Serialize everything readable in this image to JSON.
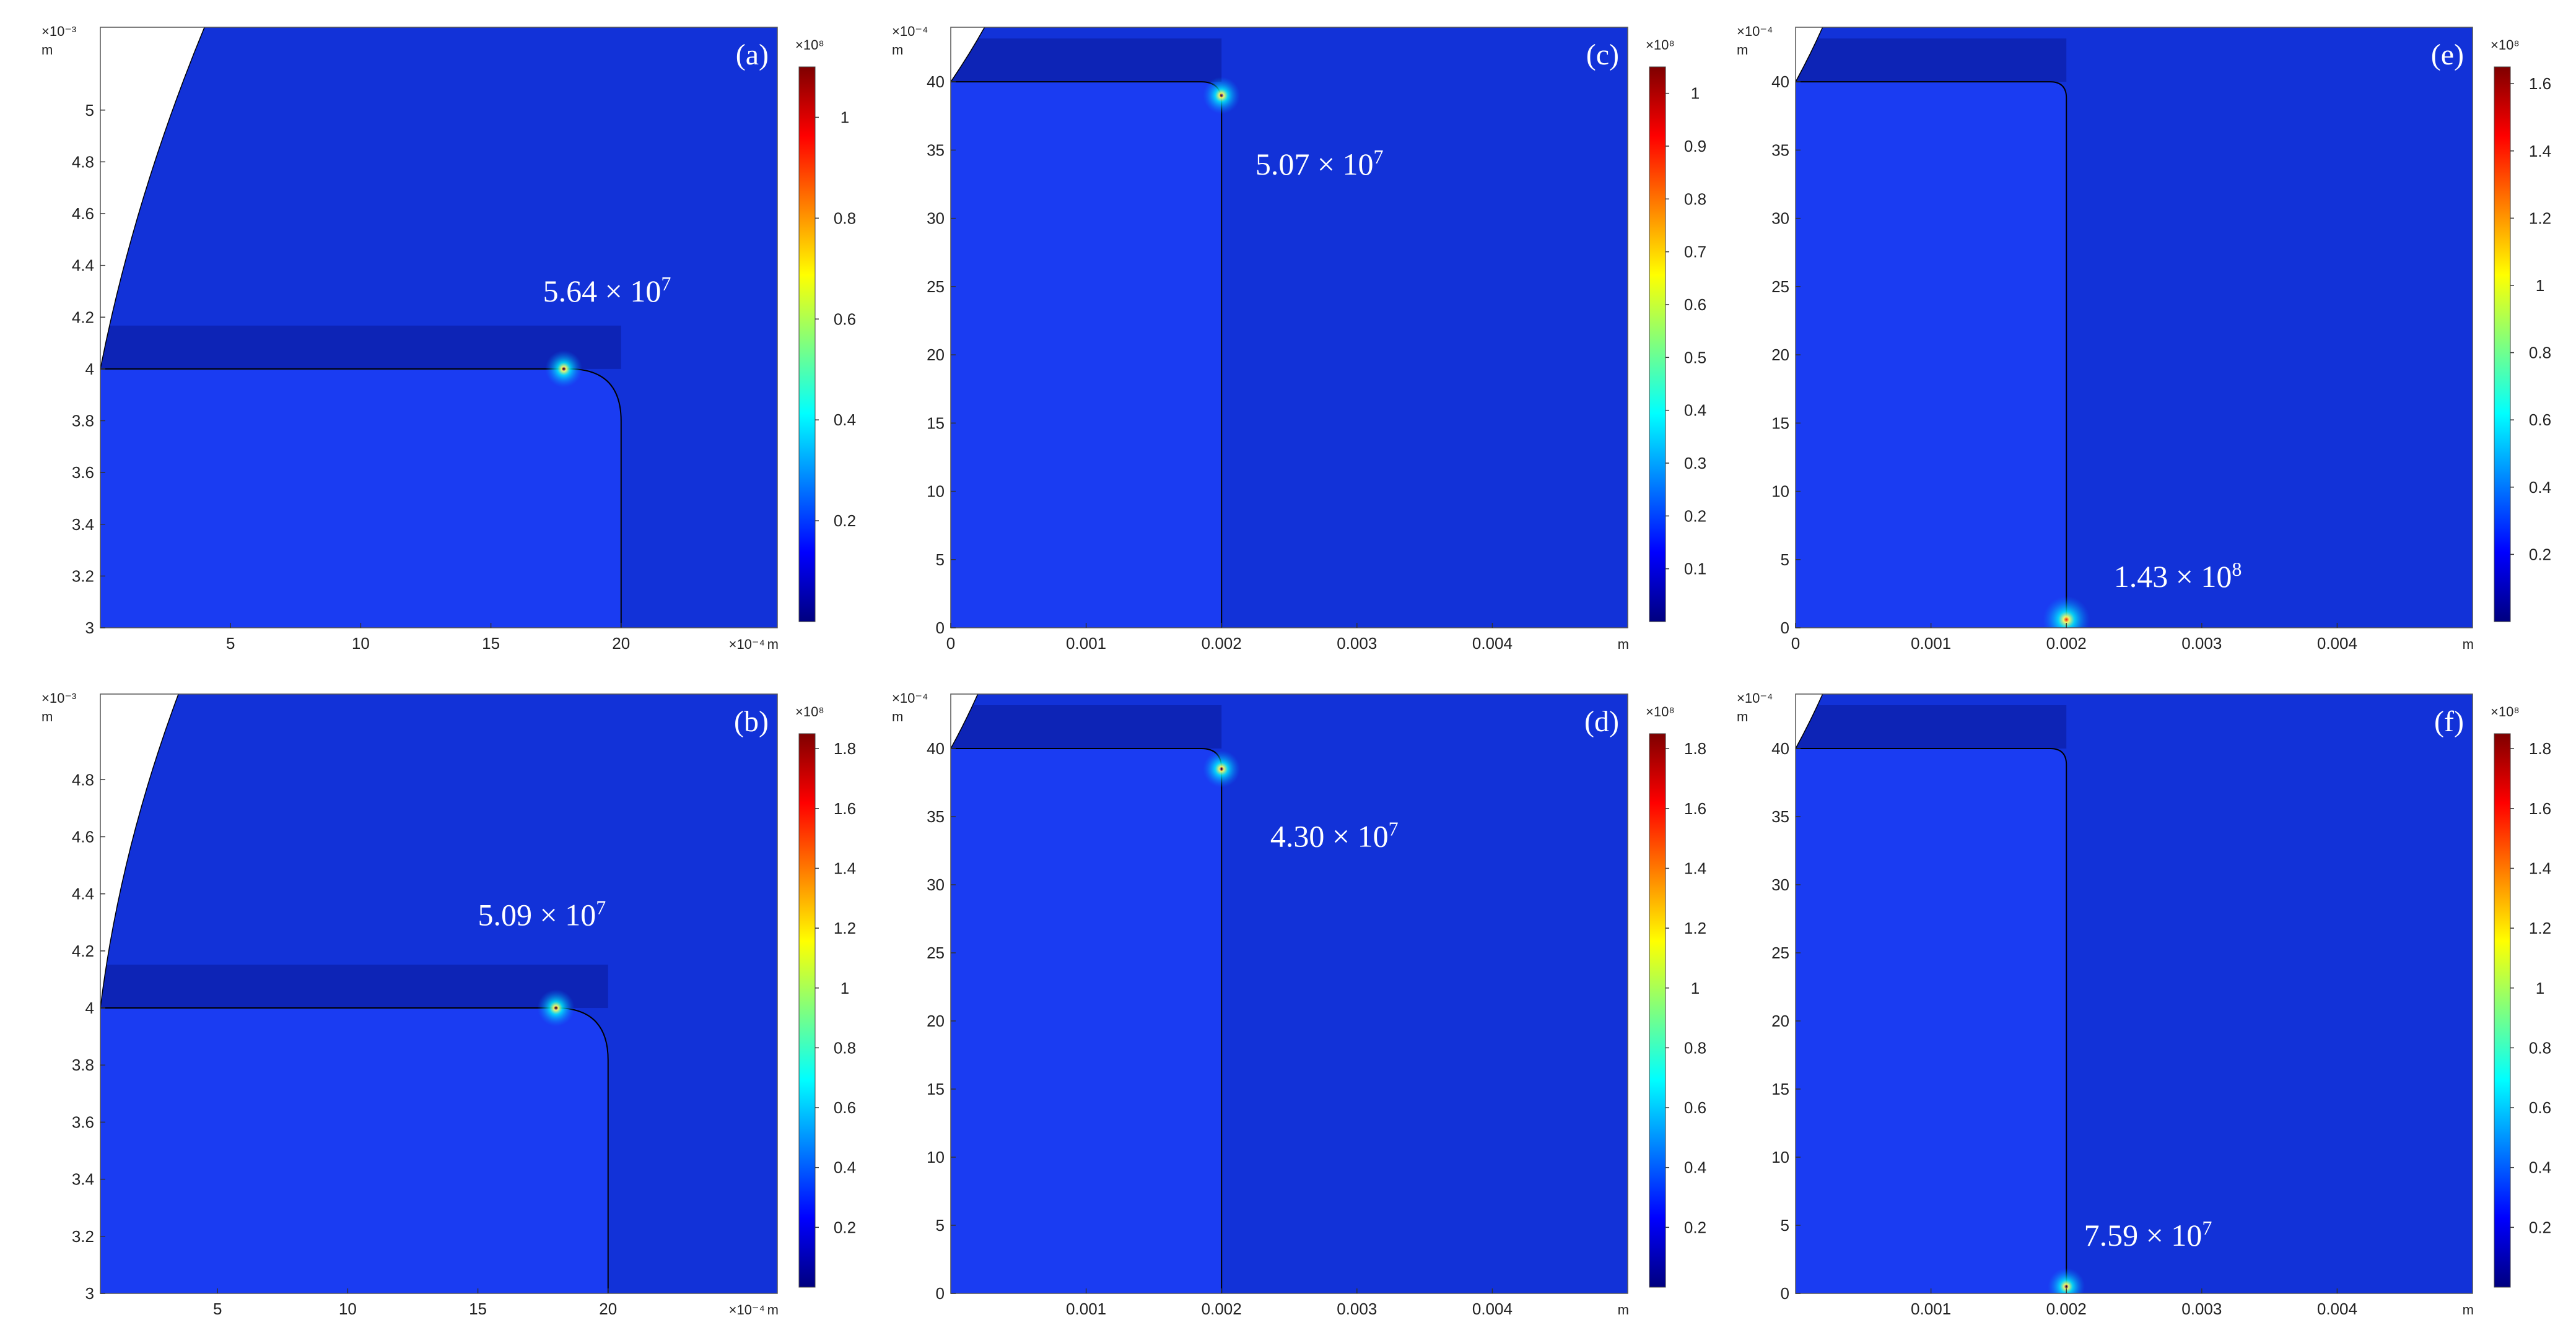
{
  "colors": {
    "field_base": "#1232d8",
    "field_dark": "#0a1a9a",
    "solid": "#1a3cf2",
    "void": "#ffffff",
    "colormap": [
      "#00007f",
      "#0000ff",
      "#007fff",
      "#00ffff",
      "#7fff7f",
      "#ffff00",
      "#ff7f00",
      "#ff0000",
      "#7f0000"
    ]
  },
  "chart_data": [
    {
      "id": "a",
      "type": "heatmap",
      "label": "(a)",
      "x_ticks": [
        "5",
        "10",
        "15",
        "20"
      ],
      "x_values": [
        5,
        10,
        15,
        20
      ],
      "xlim": [
        0,
        26
      ],
      "x_exponent": "×10⁻⁴",
      "x_unit": "m",
      "y_ticks": [
        "3",
        "3.2",
        "3.4",
        "3.6",
        "3.8",
        "4",
        "4.2",
        "4.4",
        "4.6",
        "4.8",
        "5"
      ],
      "y_values": [
        3,
        3.2,
        3.4,
        3.6,
        3.8,
        4,
        4.2,
        4.4,
        4.6,
        4.8,
        5
      ],
      "ylim": [
        3,
        5.32
      ],
      "y_exponent": "×10⁻³",
      "y_unit": "m",
      "geometry": {
        "top_y": 4.0,
        "right_x": 20,
        "corner_r": 2.0,
        "void_top_x": 4.0,
        "void_dx": 6.0
      },
      "peak": {
        "value": 56400000,
        "text": "5.64 × 10",
        "exp": "7",
        "x": 17.8,
        "y": 4.0,
        "label_x": 17,
        "label_y": 4.26
      },
      "colorbar": {
        "exponent": "×10⁸",
        "ticks": [
          "0.2",
          "0.4",
          "0.6",
          "0.8",
          "1"
        ],
        "tick_values": [
          0.2,
          0.4,
          0.6,
          0.8,
          1.0
        ],
        "range": [
          0,
          1.1
        ]
      }
    },
    {
      "id": "b",
      "type": "heatmap",
      "label": "(b)",
      "x_ticks": [
        "5",
        "10",
        "15",
        "20"
      ],
      "x_values": [
        5,
        10,
        15,
        20
      ],
      "xlim": [
        0.5,
        26.5
      ],
      "x_exponent": "×10⁻⁴",
      "x_unit": "m",
      "y_ticks": [
        "3",
        "3.2",
        "3.4",
        "3.6",
        "3.8",
        "4",
        "4.2",
        "4.4",
        "4.6",
        "4.8"
      ],
      "y_values": [
        3,
        3.2,
        3.4,
        3.6,
        3.8,
        4,
        4.2,
        4.4,
        4.6,
        4.8
      ],
      "ylim": [
        3,
        5.1
      ],
      "y_exponent": "×10⁻³",
      "y_unit": "m",
      "geometry": {
        "top_y": 4.0,
        "right_x": 20,
        "corner_r": 2.0,
        "void_top_x": 3.5,
        "void_dx": 5.0
      },
      "peak": {
        "value": 50900000,
        "text": "5.09 × 10",
        "exp": "7",
        "x": 18.0,
        "y": 4.0,
        "label_x": 15.0,
        "label_y": 4.29
      },
      "colorbar": {
        "exponent": "×10⁸",
        "ticks": [
          "0.2",
          "0.4",
          "0.6",
          "0.8",
          "1",
          "1.2",
          "1.4",
          "1.6",
          "1.8"
        ],
        "tick_values": [
          0.2,
          0.4,
          0.6,
          0.8,
          1.0,
          1.2,
          1.4,
          1.6,
          1.8
        ],
        "range": [
          0,
          1.85
        ]
      }
    },
    {
      "id": "c",
      "type": "heatmap",
      "label": "(c)",
      "x_ticks": [
        "0",
        "0.001",
        "0.002",
        "0.003",
        "0.004"
      ],
      "x_values": [
        0,
        0.001,
        0.002,
        0.003,
        0.004
      ],
      "xlim": [
        0,
        0.005
      ],
      "x_exponent": "",
      "x_unit": "m",
      "y_ticks": [
        "0",
        "5",
        "10",
        "15",
        "20",
        "25",
        "30",
        "35",
        "40"
      ],
      "y_values": [
        0,
        5,
        10,
        15,
        20,
        25,
        30,
        35,
        40
      ],
      "ylim": [
        0,
        44
      ],
      "y_exponent": "×10⁻⁴",
      "y_unit": "m",
      "geometry": {
        "top_y": 40,
        "right_x": 0.002,
        "corner_r": 0.00015,
        "void_top_x": 0.00025,
        "void_dx": 0.00025
      },
      "peak": {
        "value": 50700000,
        "text": "5.07 × 10",
        "exp": "7",
        "x": 0.002,
        "y": 39,
        "label_x": 0.00225,
        "label_y": 33.2
      },
      "colorbar": {
        "exponent": "×10⁸",
        "ticks": [
          "0.1",
          "0.2",
          "0.3",
          "0.4",
          "0.5",
          "0.6",
          "0.7",
          "0.8",
          "0.9",
          "1"
        ],
        "tick_values": [
          0.1,
          0.2,
          0.3,
          0.4,
          0.5,
          0.6,
          0.7,
          0.8,
          0.9,
          1.0
        ],
        "range": [
          0,
          1.05
        ]
      }
    },
    {
      "id": "d",
      "type": "heatmap",
      "label": "(d)",
      "x_ticks": [
        "0.001",
        "0.002",
        "0.003",
        "0.004"
      ],
      "x_values": [
        0.001,
        0.002,
        0.003,
        0.004
      ],
      "xlim": [
        0,
        0.005
      ],
      "x_exponent": "",
      "x_unit": "m",
      "y_ticks": [
        "0",
        "5",
        "10",
        "15",
        "20",
        "25",
        "30",
        "35",
        "40"
      ],
      "y_values": [
        0,
        5,
        10,
        15,
        20,
        25,
        30,
        35,
        40
      ],
      "ylim": [
        0,
        44
      ],
      "y_exponent": "×10⁻⁴",
      "y_unit": "m",
      "geometry": {
        "top_y": 40,
        "right_x": 0.002,
        "corner_r": 0.00015,
        "void_top_x": 0.0002,
        "void_dx": 0.0002
      },
      "peak": {
        "value": 43000000,
        "text": "4.30 × 10",
        "exp": "7",
        "x": 0.002,
        "y": 38.5,
        "label_x": 0.00236,
        "label_y": 32.8
      },
      "colorbar": {
        "exponent": "×10⁸",
        "ticks": [
          "0.2",
          "0.4",
          "0.6",
          "0.8",
          "1",
          "1.2",
          "1.4",
          "1.6",
          "1.8"
        ],
        "tick_values": [
          0.2,
          0.4,
          0.6,
          0.8,
          1.0,
          1.2,
          1.4,
          1.6,
          1.8
        ],
        "range": [
          0,
          1.85
        ]
      }
    },
    {
      "id": "e",
      "type": "heatmap",
      "label": "(e)",
      "x_ticks": [
        "0",
        "0.001",
        "0.002",
        "0.003",
        "0.004"
      ],
      "x_values": [
        0,
        0.001,
        0.002,
        0.003,
        0.004
      ],
      "xlim": [
        0,
        0.005
      ],
      "x_exponent": "",
      "x_unit": "m",
      "y_ticks": [
        "0",
        "5",
        "10",
        "15",
        "20",
        "25",
        "30",
        "35",
        "40"
      ],
      "y_values": [
        0,
        5,
        10,
        15,
        20,
        25,
        30,
        35,
        40
      ],
      "ylim": [
        0,
        44
      ],
      "y_exponent": "×10⁻⁴",
      "y_unit": "m",
      "geometry": {
        "top_y": 40,
        "right_x": 0.002,
        "corner_r": 0.00012,
        "void_top_x": 0.0002,
        "void_dx": 0.0002
      },
      "peak": {
        "value": 143000000,
        "text": "1.43 × 10",
        "exp": "8",
        "x": 0.002,
        "y": 0.6,
        "label_x": 0.00235,
        "label_y": 3.0
      },
      "colorbar": {
        "exponent": "×10⁸",
        "ticks": [
          "0.2",
          "0.4",
          "0.6",
          "0.8",
          "1",
          "1.2",
          "1.4",
          "1.6"
        ],
        "tick_values": [
          0.2,
          0.4,
          0.6,
          0.8,
          1.0,
          1.2,
          1.4,
          1.6
        ],
        "range": [
          0,
          1.65
        ]
      }
    },
    {
      "id": "f",
      "type": "heatmap",
      "label": "(f)",
      "x_ticks": [
        "0.001",
        "0.002",
        "0.003",
        "0.004"
      ],
      "x_values": [
        0.001,
        0.002,
        0.003,
        0.004
      ],
      "xlim": [
        0,
        0.005
      ],
      "x_exponent": "",
      "x_unit": "m",
      "y_ticks": [
        "0",
        "5",
        "10",
        "15",
        "20",
        "25",
        "30",
        "35",
        "40"
      ],
      "y_values": [
        0,
        5,
        10,
        15,
        20,
        25,
        30,
        35,
        40
      ],
      "ylim": [
        0,
        44
      ],
      "y_exponent": "×10⁻⁴",
      "y_unit": "m",
      "geometry": {
        "top_y": 40,
        "right_x": 0.002,
        "corner_r": 0.00012,
        "void_top_x": 0.0002,
        "void_dx": 0.0002
      },
      "peak": {
        "value": 75900000,
        "text": "7.59 × 10",
        "exp": "7",
        "x": 0.002,
        "y": 0.5,
        "label_x": 0.00213,
        "label_y": 3.5
      },
      "colorbar": {
        "exponent": "×10⁸",
        "ticks": [
          "0.2",
          "0.4",
          "0.6",
          "0.8",
          "1",
          "1.2",
          "1.4",
          "1.6",
          "1.8"
        ],
        "tick_values": [
          0.2,
          0.4,
          0.6,
          0.8,
          1.0,
          1.2,
          1.4,
          1.6,
          1.8
        ],
        "range": [
          0,
          1.85
        ]
      }
    }
  ]
}
